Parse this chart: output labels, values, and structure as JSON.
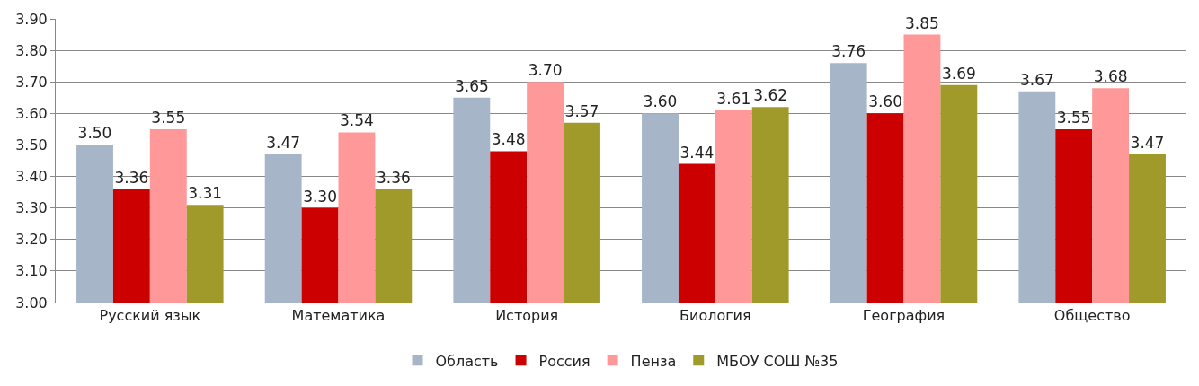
{
  "chart_data": {
    "type": "bar",
    "categories": [
      "Русский язык",
      "Математика",
      "История",
      "Биология",
      "География",
      "Общество"
    ],
    "series": [
      {
        "name": "Область",
        "color": "#a6b6c8",
        "values": [
          3.5,
          3.47,
          3.65,
          3.6,
          3.76,
          3.67
        ],
        "value_labels": [
          "3.50",
          "3.47",
          "3.65",
          "3.60",
          "3.76",
          "3.67"
        ]
      },
      {
        "name": "Россия",
        "color": "#cc0000",
        "values": [
          3.36,
          3.3,
          3.48,
          3.44,
          3.6,
          3.55
        ],
        "value_labels": [
          "3.36",
          "3.30",
          "3.48",
          "3.44",
          "3.60",
          "3.55"
        ]
      },
      {
        "name": "Пенза",
        "color": "#ff9999",
        "values": [
          3.55,
          3.54,
          3.7,
          3.61,
          3.85,
          3.68
        ],
        "value_labels": [
          "3.55",
          "3.54",
          "3.70",
          "3.61",
          "3.85",
          "3.68"
        ]
      },
      {
        "name": "МБОУ СОШ №35",
        "color": "#a09a2a",
        "values": [
          3.31,
          3.36,
          3.57,
          3.62,
          3.69,
          3.47
        ],
        "value_labels": [
          "3.31",
          "3.36",
          "3.57",
          "3.62",
          "3.69",
          "3.47"
        ]
      }
    ],
    "ylim": [
      3.0,
      3.9
    ],
    "yticks": [
      {
        "value": 3.0,
        "label": "3.00"
      },
      {
        "value": 3.1,
        "label": "3.10"
      },
      {
        "value": 3.2,
        "label": "3.20"
      },
      {
        "value": 3.3,
        "label": "3.30"
      },
      {
        "value": 3.4,
        "label": "3.40"
      },
      {
        "value": 3.5,
        "label": "3.50"
      },
      {
        "value": 3.6,
        "label": "3.60"
      },
      {
        "value": 3.7,
        "label": "3.70"
      },
      {
        "value": 3.8,
        "label": "3.80"
      },
      {
        "value": 3.9,
        "label": "3.90"
      }
    ],
    "grid": "y",
    "legend": "bottom"
  }
}
